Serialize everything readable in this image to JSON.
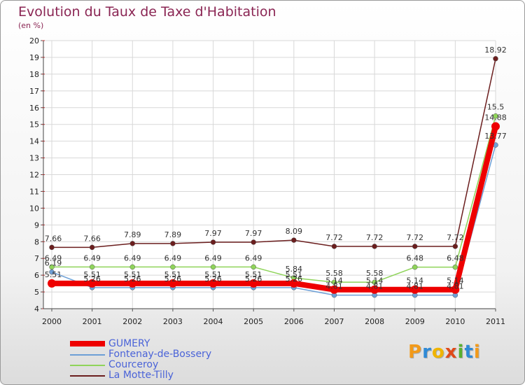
{
  "title": "Evolution du Taux de Taxe d'Habitation",
  "subtitle": "(en %)",
  "logo": {
    "text": "Proxiti",
    "letter_colors": [
      "#f29a1a",
      "#2f8ad6",
      "#f0b400",
      "#e04a1a",
      "#59b030",
      "#2f8ad6",
      "#f29a1a"
    ]
  },
  "chart_data": {
    "type": "line",
    "title": "Evolution du Taux de Taxe d'Habitation",
    "subtitle": "(en %)",
    "xlabel": "",
    "ylabel": "",
    "x": [
      "2000",
      "2001",
      "2002",
      "2003",
      "2004",
      "2005",
      "2006",
      "2007",
      "2008",
      "2009",
      "2010",
      "2011"
    ],
    "ylim": [
      4,
      20
    ],
    "yticks": [
      "4",
      "5",
      "6",
      "7",
      "8",
      "9",
      "10",
      "11",
      "12",
      "13",
      "14",
      "15",
      "16",
      "17",
      "18",
      "19",
      "20"
    ],
    "grid": true,
    "legend_position": "bottom-left",
    "series": [
      {
        "name": "La Motte-Tilly",
        "color": "#6b1e1e",
        "values": [
          7.66,
          7.66,
          7.89,
          7.89,
          7.97,
          7.97,
          8.09,
          7.72,
          7.72,
          7.72,
          7.72,
          18.92
        ],
        "labels": [
          "7.66",
          "7.66",
          "7.89",
          "7.89",
          "7.97",
          "7.97",
          "8.09",
          "7.72",
          "7.72",
          "7.72",
          "7.72",
          "18.92"
        ]
      },
      {
        "name": "Courceroy",
        "color": "#8fd45a",
        "values": [
          6.49,
          6.49,
          6.49,
          6.49,
          6.49,
          6.49,
          5.84,
          5.58,
          5.58,
          6.48,
          6.48,
          15.5
        ],
        "labels": [
          "6.49",
          "6.49",
          "6.49",
          "6.49",
          "6.49",
          "6.49",
          "5.84",
          "5.58",
          "5.58",
          "6.48",
          "6.48",
          "15.5"
        ]
      },
      {
        "name": "Fontenay-de-Bossery",
        "color": "#6d9fd6",
        "values": [
          6.19,
          5.26,
          5.26,
          5.26,
          5.26,
          5.26,
          5.26,
          4.81,
          4.81,
          4.81,
          4.81,
          13.77
        ],
        "labels": [
          "6.19",
          "5.26",
          "5.26",
          "5.26",
          "5.26",
          "5.26",
          "5.26",
          "4.81",
          "4.81",
          "4.81",
          "4.81",
          "13.77"
        ]
      },
      {
        "name": "GUMERY",
        "color": "#ee0000",
        "values": [
          5.51,
          5.51,
          5.51,
          5.51,
          5.51,
          5.51,
          5.51,
          5.14,
          5.14,
          5.14,
          5.14,
          14.88
        ],
        "labels": [
          "5.51",
          "5.51",
          "5.51",
          "5.51",
          "5.51",
          "5.51",
          "5.51",
          "5.14",
          "5.14",
          "5.14",
          "5.14",
          "14.88"
        ]
      }
    ],
    "legend": [
      {
        "name": "GUMERY",
        "color": "#ee0000"
      },
      {
        "name": "Fontenay-de-Bossery",
        "color": "#6d9fd6"
      },
      {
        "name": "Courceroy",
        "color": "#8fd45a"
      },
      {
        "name": "La Motte-Tilly",
        "color": "#6b1e1e"
      }
    ]
  }
}
